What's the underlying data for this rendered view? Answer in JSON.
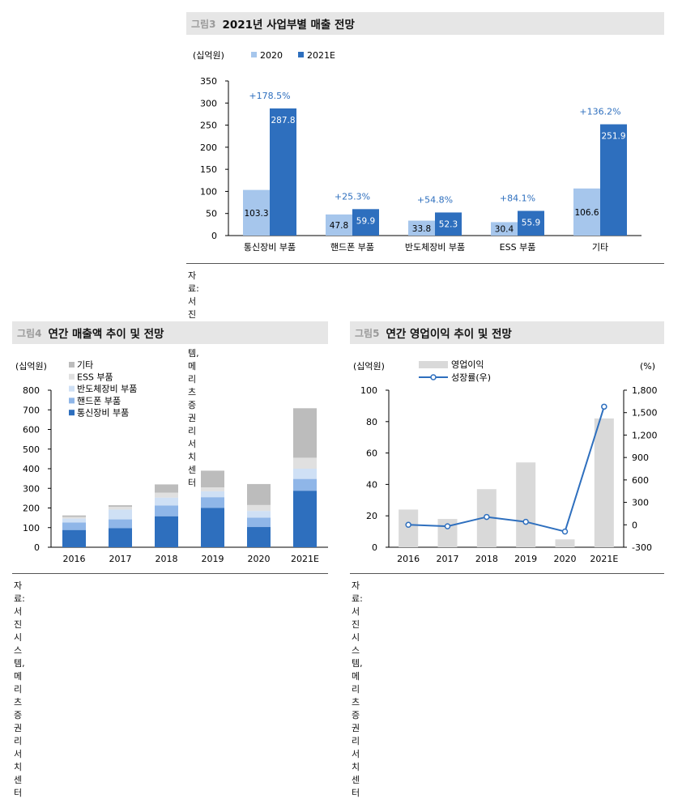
{
  "fig3": {
    "fig_label": "그림3",
    "title": "2021년 사업부별 매출 전망",
    "source": "자료: 서진시스템, 메리츠증권 리서치센터",
    "colors": {
      "s2020": "#a6c6ec",
      "s2021": "#2e6fbe",
      "growth": "#2e6fbe"
    },
    "chart_data": {
      "type": "bar",
      "unit_label": "(십억원)",
      "categories": [
        "통신장비 부품",
        "핸드폰 부품",
        "반도체장비 부품",
        "ESS 부품",
        "기타"
      ],
      "series": [
        {
          "name": "2020",
          "values": [
            103.3,
            47.8,
            33.8,
            30.4,
            106.6
          ],
          "labels": [
            "103.3",
            "47.8",
            "33.8",
            "30.4",
            "106.6"
          ]
        },
        {
          "name": "2021E",
          "values": [
            287.8,
            59.9,
            52.3,
            55.9,
            251.9
          ],
          "labels": [
            "287.8",
            "59.9",
            "52.3",
            "55.9",
            "251.9"
          ]
        }
      ],
      "growth_labels": [
        "+178.5%",
        "+25.3%",
        "+54.8%",
        "+84.1%",
        "+136.2%"
      ],
      "ylim": [
        0,
        350
      ],
      "yticks": [
        0,
        50,
        100,
        150,
        200,
        250,
        300,
        350
      ],
      "ytick_labels": [
        "0",
        "50",
        "100",
        "150",
        "200",
        "250",
        "300",
        "350"
      ]
    }
  },
  "fig4": {
    "fig_label": "그림4",
    "title": "연간 매출액 추이 및 전망",
    "source": "자료: 서진시스템, 메리츠증권 리서치센터",
    "colors": {
      "통신장비 부품": "#2e6fbe",
      "핸드폰 부품": "#8fb6e8",
      "반도체장비 부품": "#cfe0f5",
      "ESS 부품": "#e0e0e0",
      "기타": "#bcbcbc"
    },
    "chart_data": {
      "type": "bar",
      "stacked": true,
      "unit_label": "(십억원)",
      "categories": [
        "2016",
        "2017",
        "2018",
        "2019",
        "2020",
        "2021E"
      ],
      "series": [
        {
          "name": "통신장비 부품",
          "values": [
            88,
            97,
            158,
            200,
            103,
            288
          ]
        },
        {
          "name": "핸드폰 부품",
          "values": [
            38,
            45,
            55,
            55,
            48,
            60
          ]
        },
        {
          "name": "반도체장비 부품",
          "values": [
            20,
            50,
            40,
            30,
            34,
            52
          ]
        },
        {
          "name": "ESS 부품",
          "values": [
            8,
            14,
            25,
            20,
            30,
            56
          ]
        },
        {
          "name": "기타",
          "values": [
            8,
            8,
            42,
            85,
            107,
            252
          ]
        }
      ],
      "legend_order": [
        "기타",
        "ESS 부품",
        "반도체장비 부품",
        "핸드폰 부품",
        "통신장비 부품"
      ],
      "ylim": [
        0,
        800
      ],
      "yticks": [
        0,
        100,
        200,
        300,
        400,
        500,
        600,
        700,
        800
      ],
      "ytick_labels": [
        "0",
        "100",
        "200",
        "300",
        "400",
        "500",
        "600",
        "700",
        "800"
      ]
    }
  },
  "fig5": {
    "fig_label": "그림5",
    "title": "연간 영업이익 추이 및 전망",
    "source": "자료: 서진시스템, 메리츠증권 리서치센터",
    "colors": {
      "bar": "#d9d9d9",
      "line": "#2e6fbe"
    },
    "chart_data": {
      "type": "bar+line",
      "unit_left": "(십억원)",
      "unit_right": "(%)",
      "categories": [
        "2016",
        "2017",
        "2018",
        "2019",
        "2020",
        "2021E"
      ],
      "bar_series": {
        "name": "영업이익",
        "values": [
          24,
          18,
          37,
          54,
          5,
          82
        ]
      },
      "line_series": {
        "name": "성장률(우)",
        "values": [
          0,
          -20,
          105,
          40,
          -90,
          1580
        ]
      },
      "ylim_left": [
        0,
        100
      ],
      "yticks_left": [
        0,
        20,
        40,
        60,
        80,
        100
      ],
      "ytick_labels_left": [
        "0",
        "20",
        "40",
        "60",
        "80",
        "100"
      ],
      "ylim_right": [
        -300,
        1800
      ],
      "yticks_right": [
        -300,
        0,
        300,
        600,
        900,
        1200,
        1500,
        1800
      ],
      "ytick_labels_right": [
        "-300",
        "0",
        "300",
        "600",
        "900",
        "1,200",
        "1,500",
        "1,800"
      ]
    }
  }
}
